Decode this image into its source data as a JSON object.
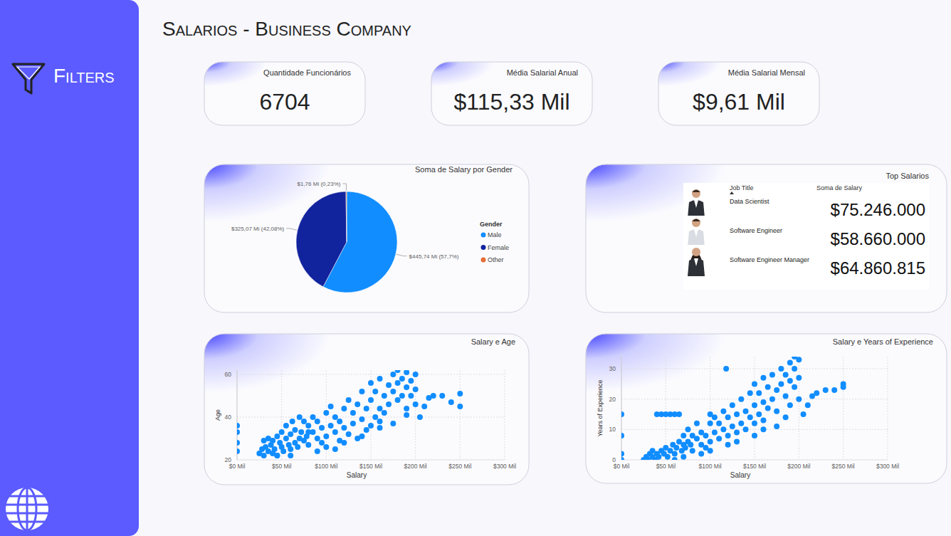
{
  "page": {
    "title": "Salarios - Business Company",
    "sidebar_label": "Filters"
  },
  "cards": [
    {
      "title": "Quantidade Funcionários",
      "value": 6704
    },
    {
      "title": "Média Salarial Anual",
      "value": 115330,
      "label": "$115,33 Mil"
    },
    {
      "title": "Média Salarial Mensal",
      "value": 9610,
      "label": "$9,61 Mil"
    }
  ],
  "table": {
    "title": "Top Salarios",
    "columns": [
      "Job Title",
      "Soma de Salary"
    ],
    "rows": [
      {
        "job_title": "Data Scientist",
        "salary": 75246000,
        "salary_label": "$75.246.000"
      },
      {
        "job_title": "Software Engineer",
        "salary": 58660000,
        "salary_label": "$58.660.000"
      },
      {
        "job_title": "Software Engineer Manager",
        "salary": 64860815,
        "salary_label": "$64.860.815"
      }
    ]
  },
  "chart_data": [
    {
      "type": "pie",
      "title": "Soma de Salary por Gender",
      "legend_title": "Gender",
      "categories": [
        "Male",
        "Female",
        "Other"
      ],
      "values": [
        445.74,
        325.07,
        1.76
      ],
      "value_labels": [
        "$445,74 Mi (57,7%)",
        "$325,07 Mi (42,08%)",
        "$1,76 Mi (0,23%)"
      ],
      "colors": [
        "#118dff",
        "#12239e",
        "#e66c37"
      ],
      "legend": "right",
      "data_labels": true
    },
    {
      "type": "scatter",
      "title": "Salary e Age",
      "x_label": "Salary",
      "y_label": "Age",
      "color": "#118dff",
      "marker": "circle",
      "grid": true,
      "xlim": [
        0,
        300
      ],
      "xticks": [
        {
          "value": 0,
          "label": "$0 Mil"
        },
        {
          "value": 50,
          "label": "$50 Mil"
        },
        {
          "value": 100,
          "label": "$100 Mil"
        },
        {
          "value": 150,
          "label": "$150 Mil"
        },
        {
          "value": 200,
          "label": "$200 Mil"
        },
        {
          "value": 250,
          "label": "$250 Mil"
        },
        {
          "value": 300,
          "label": "$300 Mil"
        }
      ],
      "ylim": [
        20,
        62
      ],
      "yticks": [
        20,
        40,
        60
      ],
      "x": [
        0,
        0,
        0,
        0,
        25,
        28,
        30,
        32,
        35,
        35,
        38,
        40,
        40,
        42,
        45,
        45,
        48,
        50,
        50,
        52,
        55,
        55,
        58,
        60,
        60,
        62,
        65,
        65,
        68,
        70,
        70,
        72,
        75,
        75,
        78,
        80,
        80,
        85,
        85,
        90,
        90,
        95,
        95,
        100,
        100,
        100,
        105,
        105,
        110,
        110,
        115,
        115,
        120,
        120,
        125,
        125,
        130,
        130,
        135,
        135,
        140,
        140,
        145,
        145,
        150,
        150,
        150,
        155,
        155,
        160,
        160,
        160,
        165,
        165,
        170,
        170,
        175,
        175,
        180,
        180,
        180,
        185,
        185,
        190,
        190,
        190,
        195,
        195,
        200,
        200,
        200,
        205,
        210,
        215,
        220,
        230,
        240,
        250,
        250,
        160,
        120,
        90,
        60,
        45,
        140,
        175,
        190,
        80,
        30,
        110
      ],
      "values": [
        24,
        28,
        33,
        36,
        23,
        25,
        22,
        26,
        24,
        30,
        27,
        23,
        29,
        25,
        31,
        22,
        28,
        26,
        33,
        24,
        30,
        36,
        27,
        25,
        32,
        38,
        28,
        34,
        26,
        30,
        40,
        33,
        29,
        38,
        31,
        27,
        36,
        33,
        40,
        30,
        38,
        35,
        28,
        31,
        42,
        26,
        36,
        45,
        33,
        40,
        29,
        38,
        35,
        44,
        32,
        48,
        37,
        42,
        30,
        46,
        39,
        52,
        34,
        44,
        36,
        48,
        56,
        40,
        52,
        44,
        58,
        38,
        50,
        42,
        55,
        46,
        60,
        52,
        48,
        56,
        62,
        50,
        58,
        54,
        61,
        44,
        50,
        57,
        53,
        60,
        46,
        40,
        45,
        49,
        50,
        50,
        47,
        45,
        51,
        35,
        28,
        24,
        22,
        22,
        31,
        37,
        41,
        33,
        29,
        25
      ]
    },
    {
      "type": "scatter",
      "title": "Salary e Years of Experience",
      "x_label": "Salary",
      "y_label": "Years of Experience",
      "color": "#118dff",
      "marker": "circle",
      "grid": true,
      "xlim": [
        0,
        300
      ],
      "xticks": [
        {
          "value": 0,
          "label": "$0 Mil"
        },
        {
          "value": 50,
          "label": "$50 Mil"
        },
        {
          "value": 100,
          "label": "$100 Mil"
        },
        {
          "value": 150,
          "label": "$150 Mil"
        },
        {
          "value": 200,
          "label": "$200 Mil"
        },
        {
          "value": 250,
          "label": "$250 Mil"
        },
        {
          "value": 300,
          "label": "$300 Mil"
        }
      ],
      "ylim": [
        0,
        34
      ],
      "yticks": [
        0,
        10,
        20,
        30
      ],
      "x": [
        0,
        0,
        0,
        0,
        25,
        28,
        30,
        32,
        35,
        35,
        38,
        40,
        40,
        42,
        45,
        45,
        48,
        50,
        50,
        52,
        55,
        55,
        58,
        60,
        60,
        62,
        65,
        65,
        68,
        70,
        70,
        72,
        75,
        75,
        78,
        80,
        80,
        85,
        85,
        90,
        90,
        95,
        95,
        100,
        100,
        100,
        105,
        105,
        110,
        110,
        115,
        115,
        120,
        120,
        118,
        125,
        125,
        130,
        130,
        135,
        135,
        140,
        140,
        145,
        145,
        150,
        150,
        150,
        155,
        155,
        160,
        160,
        160,
        165,
        165,
        170,
        170,
        175,
        175,
        180,
        180,
        185,
        185,
        190,
        190,
        190,
        195,
        195,
        200,
        200,
        200,
        195,
        205,
        210,
        215,
        220,
        230,
        240,
        250,
        250,
        120,
        90,
        60,
        150,
        175,
        185,
        100,
        130,
        70,
        160
      ],
      "values": [
        0,
        2,
        8,
        15,
        0,
        1,
        0,
        2,
        1,
        3,
        0,
        2,
        15,
        1,
        15,
        3,
        2,
        15,
        4,
        1,
        15,
        3,
        5,
        15,
        2,
        4,
        15,
        6,
        3,
        5,
        8,
        4,
        6,
        10,
        5,
        3,
        8,
        7,
        12,
        5,
        9,
        8,
        4,
        6,
        12,
        15,
        9,
        14,
        7,
        12,
        10,
        16,
        8,
        14,
        30,
        11,
        18,
        9,
        15,
        12,
        20,
        10,
        16,
        14,
        22,
        12,
        18,
        25,
        15,
        22,
        13,
        19,
        27,
        17,
        24,
        20,
        28,
        16,
        23,
        25,
        30,
        21,
        28,
        26,
        32,
        18,
        24,
        30,
        27,
        33,
        20,
        34,
        15,
        18,
        21,
        22,
        23,
        23,
        24,
        25,
        5,
        2,
        0,
        8,
        11,
        14,
        3,
        6,
        1,
        10
      ]
    }
  ]
}
